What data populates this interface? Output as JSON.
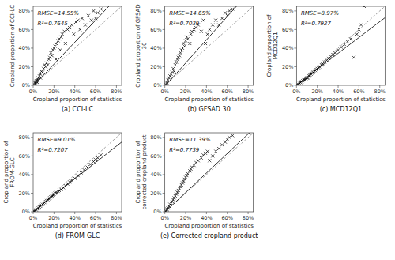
{
  "chart_data": [
    {
      "type": "scatter",
      "title": "(a) CCI-LC",
      "annotations": [
        "RMSE=14.55%",
        "R²=0.7645"
      ],
      "xlabel": "Cropland proportion of statistics",
      "ylabel": "Cropland proportion of CCI-LC",
      "xlim": [
        0,
        0.85
      ],
      "ylim": [
        0,
        0.85
      ],
      "xticks": [
        {
          "value": 0,
          "label": "0%"
        },
        {
          "value": 0.2,
          "label": "20%"
        },
        {
          "value": 0.4,
          "label": "40%"
        },
        {
          "value": 0.6,
          "label": "60%"
        },
        {
          "value": 0.8,
          "label": "80%"
        }
      ],
      "yticks": [
        {
          "value": 0,
          "label": "0%"
        },
        {
          "value": 0.2,
          "label": "20%"
        },
        {
          "value": 0.4,
          "label": "40%"
        },
        {
          "value": 0.6,
          "label": "60%"
        },
        {
          "value": 0.8,
          "label": "80%"
        }
      ],
      "grid": false,
      "series": [
        {
          "type": "scatter",
          "marker": "x",
          "color": "black",
          "x": [
            0.01,
            0.02,
            0.02,
            0.03,
            0.03,
            0.04,
            0.04,
            0.05,
            0.05,
            0.06,
            0.07,
            0.07,
            0.08,
            0.09,
            0.1,
            0.11,
            0.12,
            0.13,
            0.14,
            0.15,
            0.16,
            0.17,
            0.18,
            0.19,
            0.2,
            0.21,
            0.22,
            0.22,
            0.24,
            0.25,
            0.26,
            0.27,
            0.28,
            0.3,
            0.31,
            0.33,
            0.35,
            0.37,
            0.39,
            0.41,
            0.43,
            0.45,
            0.47,
            0.5,
            0.53,
            0.56,
            0.58,
            0.6,
            0.62,
            0.65
          ],
          "values": [
            0.01,
            0.03,
            0.02,
            0.05,
            0.04,
            0.06,
            0.03,
            0.08,
            0.06,
            0.1,
            0.12,
            0.08,
            0.15,
            0.14,
            0.18,
            0.22,
            0.2,
            0.24,
            0.22,
            0.28,
            0.3,
            0.35,
            0.32,
            0.38,
            0.4,
            0.42,
            0.28,
            0.45,
            0.48,
            0.5,
            0.38,
            0.52,
            0.55,
            0.58,
            0.45,
            0.6,
            0.62,
            0.65,
            0.55,
            0.68,
            0.7,
            0.6,
            0.72,
            0.65,
            0.75,
            0.7,
            0.8,
            0.72,
            0.78,
            0.82
          ]
        },
        {
          "type": "line",
          "line_style": "dashed",
          "color": "#888888",
          "x": [
            0,
            0.85
          ],
          "values": [
            0,
            0.85
          ]
        },
        {
          "type": "line",
          "line_style": "solid",
          "color": "black",
          "slope": 1.18,
          "intercept": -0.008
        }
      ]
    },
    {
      "type": "scatter",
      "title": "(b) GFSAD 30",
      "annotations": [
        "RMSE=14.65%",
        "R²=0.7039"
      ],
      "xlabel": "Cropland proportion of statistics",
      "ylabel": "Cropland proportion of GFSAD 30",
      "xlim": [
        0,
        0.85
      ],
      "ylim": [
        0,
        0.85
      ],
      "xticks": [
        {
          "value": 0,
          "label": "0%"
        },
        {
          "value": 0.2,
          "label": "20%"
        },
        {
          "value": 0.4,
          "label": "40%"
        },
        {
          "value": 0.6,
          "label": "60%"
        },
        {
          "value": 0.8,
          "label": "80%"
        }
      ],
      "yticks": [
        {
          "value": 0,
          "label": "0%"
        },
        {
          "value": 0.2,
          "label": "20%"
        },
        {
          "value": 0.4,
          "label": "40%"
        },
        {
          "value": 0.6,
          "label": "60%"
        },
        {
          "value": 0.8,
          "label": "80%"
        }
      ],
      "grid": false,
      "series": [
        {
          "type": "scatter",
          "marker": "x",
          "color": "black",
          "x": [
            0.01,
            0.02,
            0.02,
            0.03,
            0.04,
            0.05,
            0.06,
            0.07,
            0.08,
            0.09,
            0.1,
            0.11,
            0.12,
            0.13,
            0.14,
            0.15,
            0.16,
            0.17,
            0.18,
            0.19,
            0.2,
            0.21,
            0.22,
            0.24,
            0.25,
            0.26,
            0.28,
            0.3,
            0.32,
            0.35,
            0.37,
            0.39,
            0.41,
            0.43,
            0.46,
            0.49,
            0.52,
            0.55,
            0.58,
            0.6,
            0.62,
            0.65
          ],
          "values": [
            0.01,
            0.03,
            0.02,
            0.06,
            0.08,
            0.1,
            0.12,
            0.14,
            0.18,
            0.15,
            0.22,
            0.25,
            0.28,
            0.3,
            0.32,
            0.35,
            0.38,
            0.4,
            0.45,
            0.42,
            0.48,
            0.52,
            0.5,
            0.45,
            0.55,
            0.58,
            0.6,
            0.62,
            0.65,
            0.58,
            0.7,
            0.45,
            0.55,
            0.6,
            0.65,
            0.7,
            0.65,
            0.72,
            0.78,
            0.75,
            0.8,
            0.82
          ]
        },
        {
          "type": "line",
          "line_style": "dashed",
          "color": "#888888",
          "x": [
            0,
            0.85
          ],
          "values": [
            0,
            0.85
          ]
        },
        {
          "type": "line",
          "line_style": "solid",
          "color": "black",
          "slope": 1.25,
          "intercept": -0.01
        }
      ]
    },
    {
      "type": "scatter",
      "title": "(c) MCD12Q1",
      "annotations": [
        "RMSE=8.97%",
        "R²=0.7927"
      ],
      "xlabel": "Cropland proportion of statistics",
      "ylabel": "Cropland proportion of MCD12Q1",
      "xlim": [
        0,
        0.85
      ],
      "ylim": [
        0,
        0.85
      ],
      "xticks": [
        {
          "value": 0,
          "label": "0%"
        },
        {
          "value": 0.2,
          "label": "20%"
        },
        {
          "value": 0.4,
          "label": "40%"
        },
        {
          "value": 0.6,
          "label": "60%"
        },
        {
          "value": 0.8,
          "label": "80%"
        }
      ],
      "yticks": [
        {
          "value": 0,
          "label": "0%"
        },
        {
          "value": 0.2,
          "label": "20%"
        },
        {
          "value": 0.4,
          "label": "40%"
        },
        {
          "value": 0.6,
          "label": "60%"
        },
        {
          "value": 0.8,
          "label": "80%"
        }
      ],
      "grid": false,
      "series": [
        {
          "type": "scatter",
          "marker": "x",
          "color": "black",
          "x": [
            0.01,
            0.02,
            0.03,
            0.04,
            0.05,
            0.06,
            0.07,
            0.08,
            0.09,
            0.1,
            0.11,
            0.12,
            0.13,
            0.14,
            0.15,
            0.16,
            0.17,
            0.18,
            0.19,
            0.2,
            0.21,
            0.22,
            0.24,
            0.25,
            0.27,
            0.29,
            0.31,
            0.33,
            0.35,
            0.37,
            0.4,
            0.43,
            0.46,
            0.49,
            0.52,
            0.55,
            0.58,
            0.6,
            0.62,
            0.65
          ],
          "values": [
            0.005,
            0.01,
            0.02,
            0.03,
            0.04,
            0.05,
            0.06,
            0.06,
            0.07,
            0.08,
            0.08,
            0.1,
            0.11,
            0.12,
            0.13,
            0.14,
            0.15,
            0.16,
            0.17,
            0.18,
            0.19,
            0.2,
            0.22,
            0.23,
            0.25,
            0.27,
            0.29,
            0.31,
            0.33,
            0.35,
            0.38,
            0.41,
            0.44,
            0.47,
            0.5,
            0.3,
            0.55,
            0.6,
            0.65,
            0.85
          ]
        },
        {
          "type": "line",
          "line_style": "dashed",
          "color": "#888888",
          "x": [
            0,
            0.85
          ],
          "values": [
            0,
            0.85
          ]
        },
        {
          "type": "line",
          "line_style": "solid",
          "color": "black",
          "slope": 0.85,
          "intercept": 0.005
        }
      ]
    },
    {
      "type": "scatter",
      "title": "(d) FROM-GLC",
      "annotations": [
        "RMSE=9.01%",
        "R²=0.7207"
      ],
      "xlabel": "Cropland proportion of statistics",
      "ylabel": "Cropland proportion of FROM-GLC",
      "xlim": [
        0,
        0.85
      ],
      "ylim": [
        0,
        0.85
      ],
      "xticks": [
        {
          "value": 0,
          "label": "0%"
        },
        {
          "value": 0.2,
          "label": "20%"
        },
        {
          "value": 0.4,
          "label": "40%"
        },
        {
          "value": 0.6,
          "label": "60%"
        },
        {
          "value": 0.8,
          "label": "80%"
        }
      ],
      "yticks": [
        {
          "value": 0,
          "label": "0%"
        },
        {
          "value": 0.2,
          "label": "20%"
        },
        {
          "value": 0.4,
          "label": "40%"
        },
        {
          "value": 0.6,
          "label": "60%"
        },
        {
          "value": 0.8,
          "label": "80%"
        }
      ],
      "grid": false,
      "series": [
        {
          "type": "scatter",
          "marker": "x",
          "color": "black",
          "x": [
            0.01,
            0.02,
            0.03,
            0.04,
            0.05,
            0.06,
            0.07,
            0.08,
            0.09,
            0.1,
            0.11,
            0.12,
            0.13,
            0.14,
            0.15,
            0.16,
            0.17,
            0.18,
            0.19,
            0.2,
            0.21,
            0.22,
            0.24,
            0.25,
            0.27,
            0.29,
            0.31,
            0.33,
            0.35,
            0.37,
            0.4,
            0.43,
            0.46,
            0.49,
            0.52,
            0.55,
            0.58,
            0.6,
            0.62,
            0.65
          ],
          "values": [
            0.005,
            0.01,
            0.02,
            0.03,
            0.04,
            0.05,
            0.06,
            0.07,
            0.08,
            0.09,
            0.1,
            0.11,
            0.12,
            0.13,
            0.14,
            0.15,
            0.16,
            0.17,
            0.18,
            0.19,
            0.2,
            0.21,
            0.22,
            0.23,
            0.24,
            0.26,
            0.28,
            0.3,
            0.32,
            0.34,
            0.36,
            0.39,
            0.42,
            0.45,
            0.48,
            0.51,
            0.54,
            0.56,
            0.58,
            0.61
          ]
        },
        {
          "type": "line",
          "line_style": "dashed",
          "color": "#888888",
          "x": [
            0,
            0.85
          ],
          "values": [
            0,
            0.85
          ]
        },
        {
          "type": "line",
          "line_style": "solid",
          "color": "black",
          "slope": 0.88,
          "intercept": 0.002
        }
      ]
    },
    {
      "type": "scatter",
      "title": "(e) Corrected cropland product",
      "annotations": [
        "RMSE=11.39%",
        "R²=0.7739"
      ],
      "xlabel": "Cropland proportion of statistics",
      "ylabel": "Cropland proportion of corrected cropland product",
      "xlim": [
        0,
        0.85
      ],
      "ylim": [
        0,
        0.85
      ],
      "xticks": [
        {
          "value": 0,
          "label": "0%"
        },
        {
          "value": 0.2,
          "label": "20%"
        },
        {
          "value": 0.4,
          "label": "40%"
        },
        {
          "value": 0.6,
          "label": "60%"
        },
        {
          "value": 0.8,
          "label": "80%"
        }
      ],
      "yticks": [
        {
          "value": 0,
          "label": "0%"
        },
        {
          "value": 0.2,
          "label": "20%"
        },
        {
          "value": 0.4,
          "label": "40%"
        },
        {
          "value": 0.6,
          "label": "60%"
        },
        {
          "value": 0.8,
          "label": "80%"
        }
      ],
      "grid": false,
      "series": [
        {
          "type": "scatter",
          "marker": "x",
          "color": "black",
          "x": [
            0.01,
            0.02,
            0.02,
            0.03,
            0.04,
            0.05,
            0.06,
            0.07,
            0.08,
            0.09,
            0.1,
            0.11,
            0.12,
            0.13,
            0.14,
            0.15,
            0.16,
            0.17,
            0.18,
            0.19,
            0.2,
            0.21,
            0.22,
            0.24,
            0.25,
            0.26,
            0.28,
            0.3,
            0.32,
            0.35,
            0.37,
            0.39,
            0.41,
            0.43,
            0.46,
            0.49,
            0.52,
            0.55,
            0.58,
            0.6,
            0.62,
            0.65
          ],
          "values": [
            0.01,
            0.02,
            0.03,
            0.04,
            0.06,
            0.08,
            0.09,
            0.11,
            0.13,
            0.15,
            0.17,
            0.19,
            0.21,
            0.23,
            0.25,
            0.27,
            0.29,
            0.31,
            0.33,
            0.35,
            0.37,
            0.39,
            0.41,
            0.44,
            0.46,
            0.48,
            0.5,
            0.53,
            0.55,
            0.58,
            0.61,
            0.63,
            0.65,
            0.55,
            0.6,
            0.65,
            0.68,
            0.72,
            0.75,
            0.78,
            0.8,
            0.82
          ]
        },
        {
          "type": "line",
          "line_style": "dashed",
          "color": "#888888",
          "x": [
            0,
            0.85
          ],
          "values": [
            0,
            0.85
          ]
        },
        {
          "type": "line",
          "line_style": "solid",
          "color": "black",
          "slope": 1.05,
          "intercept": -0.003
        }
      ]
    }
  ]
}
